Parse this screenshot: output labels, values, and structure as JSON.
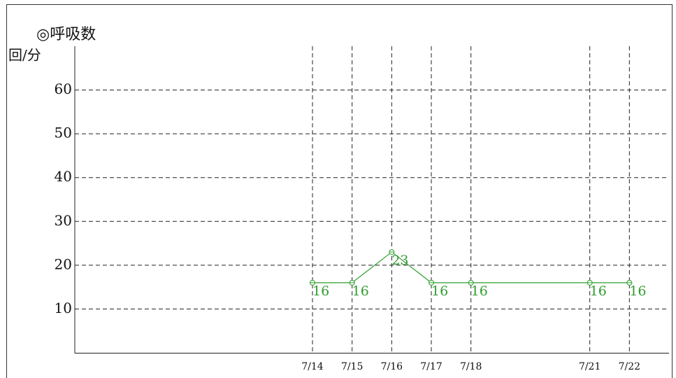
{
  "chart_data": {
    "type": "line",
    "title": "◎呼吸数",
    "y_label": "回/分",
    "x": [
      "7/14",
      "7/15",
      "7/16",
      "7/17",
      "7/18",
      "7/21",
      "7/22"
    ],
    "xlim": [
      "7/8",
      "7/23"
    ],
    "values": [
      16,
      16,
      23,
      16,
      16,
      16,
      16
    ],
    "color": "#2e9e2e",
    "ylim": [
      0,
      70
    ],
    "yticks": [
      10,
      20,
      30,
      40,
      50,
      60
    ],
    "grid": true
  }
}
